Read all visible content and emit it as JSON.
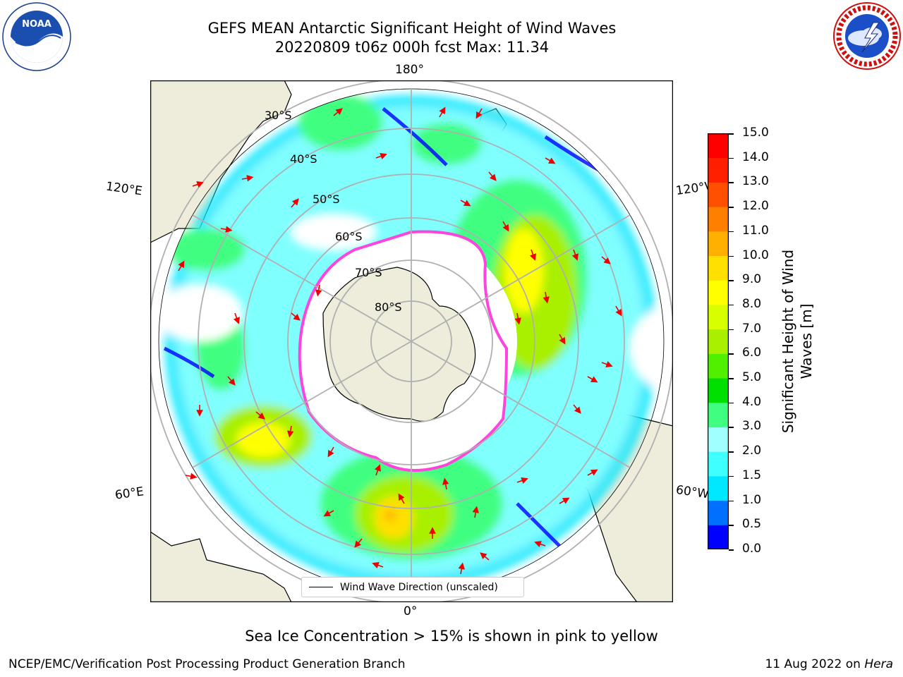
{
  "title_line1": "GEFS MEAN Antarctic Significant Height of Wind Waves",
  "title_line2": "20220809 t06z 000h fcst   Max: 11.34",
  "logos": {
    "left": "noaa-logo",
    "right": "national-weather-service-logo"
  },
  "map": {
    "projection": "south-polar-stereographic",
    "longitude_labels": {
      "top": "180°",
      "bottom": "0°",
      "left_upper": "120°E",
      "left_lower": "60°E",
      "right_upper": "120°W",
      "right_lower": "60°W"
    },
    "latitude_labels": [
      "30°S",
      "40°S",
      "50°S",
      "60°S",
      "70°S",
      "80°S"
    ],
    "legend_text": "Wind Wave Direction (unscaled)",
    "colors": {
      "land": "#eeecda",
      "ocean_nodata": "#ffffff",
      "sea_ice_edge": "#ff44dd",
      "arrows": "#ee0000",
      "grid": "#b0b0b0"
    }
  },
  "colorbar": {
    "label_line1": "Significant Height of Wind",
    "label_line2": "Waves [m]",
    "ticks": [
      "15.0",
      "14.0",
      "13.0",
      "12.0",
      "11.0",
      "10.0",
      "9.0",
      "8.0",
      "7.0",
      "6.0",
      "5.0",
      "4.0",
      "3.0",
      "2.0",
      "1.5",
      "1.0",
      "0.5",
      "0.0"
    ],
    "colors_low_to_high": [
      "#0000ff",
      "#0070ff",
      "#00e8ff",
      "#40ffff",
      "#a0ffff",
      "#40ff80",
      "#00e000",
      "#50f000",
      "#a8f000",
      "#d8ff00",
      "#ffff00",
      "#ffe000",
      "#ffb000",
      "#ff8000",
      "#ff5000",
      "#ff2000",
      "#ff0000"
    ]
  },
  "note": "Sea Ice Concentration > 15% is shown in pink to yellow",
  "footer_left": "NCEP/EMC/Verification Post Processing Product Generation Branch",
  "footer_right_date": "11 Aug 2022 on ",
  "footer_right_machine": "Hera"
}
